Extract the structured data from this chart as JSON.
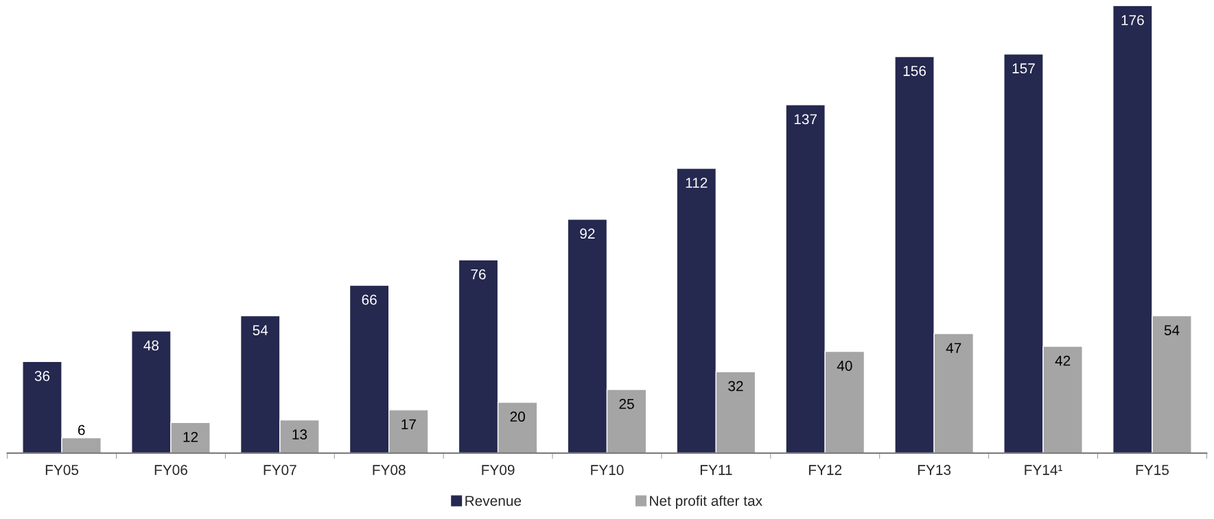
{
  "chart_data": {
    "type": "bar",
    "categories": [
      "FY05",
      "FY06",
      "FY07",
      "FY08",
      "FY09",
      "FY10",
      "FY11",
      "FY12",
      "FY13",
      "FY14¹",
      "FY15"
    ],
    "series": [
      {
        "name": "Revenue",
        "color": "#25284f",
        "values": [
          36,
          48,
          54,
          66,
          76,
          92,
          112,
          137,
          156,
          157,
          176
        ]
      },
      {
        "name": "Net profit after tax",
        "color": "#a5a5a5",
        "values": [
          6,
          12,
          13,
          17,
          20,
          25,
          32,
          40,
          47,
          42,
          54
        ]
      }
    ],
    "data_labels": true,
    "legend": "bottom",
    "grid": false
  }
}
